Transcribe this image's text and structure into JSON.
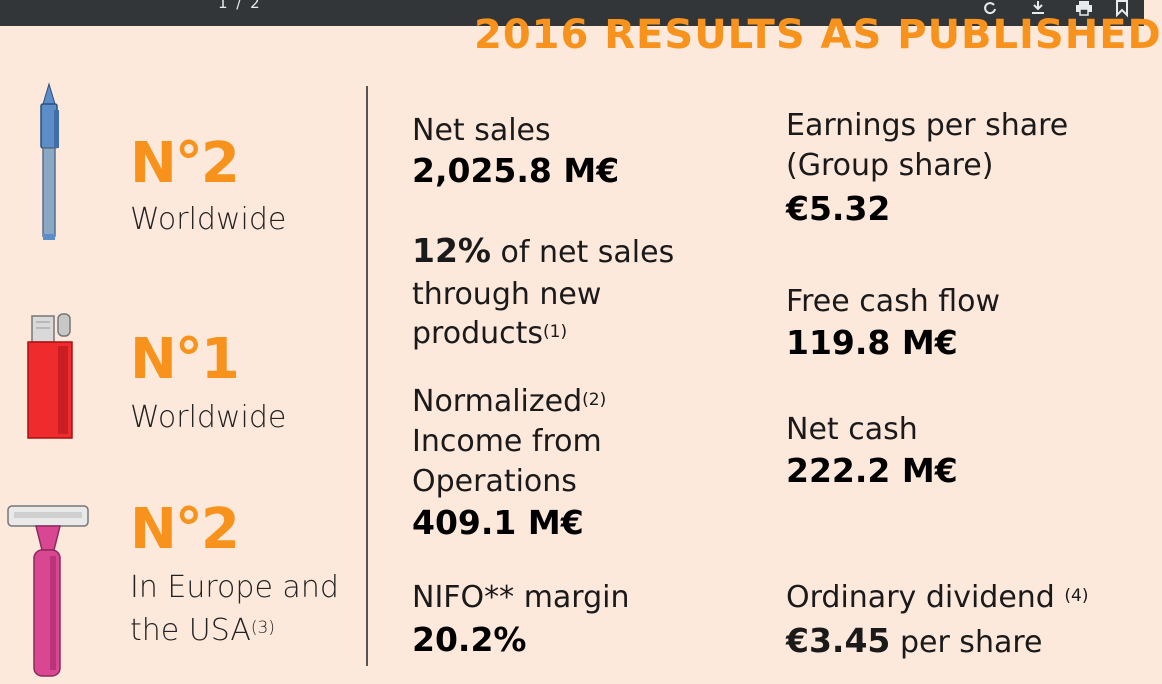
{
  "toolbar": {
    "page_indicator": "1 / 2"
  },
  "slide": {
    "title": "2016 RESULTS AS PUBLISHED",
    "rankings": [
      {
        "rank": "N°2",
        "scope": "Worldwide",
        "icon": "pen-icon"
      },
      {
        "rank": "N°1",
        "scope": "Worldwide",
        "icon": "lighter-icon"
      },
      {
        "rank": "N°2",
        "scope_line1": "In Europe and",
        "scope_line2": "the USA",
        "footnote": "(3)",
        "icon": "razor-icon"
      }
    ],
    "metrics_left": {
      "net_sales": {
        "label": "Net sales",
        "value": "2,025.8 M€"
      },
      "new_products": {
        "value": "12%",
        "label_line1": "of net sales",
        "label_line2": "through new",
        "label_line3": "products",
        "footnote": "(1)"
      },
      "normalized_income": {
        "label_line1": "Normalized",
        "footnote": "(2)",
        "label_line2": "Income from",
        "label_line3": "Operations",
        "value": "409.1 M€"
      },
      "nifo_margin": {
        "label": "NIFO** margin",
        "value": "20.2%"
      }
    },
    "metrics_right": {
      "eps": {
        "label_line1": "Earnings per share",
        "label_line2": "(Group share)",
        "value": "€5.32"
      },
      "free_cash_flow": {
        "label": "Free cash flow",
        "value": "119.8 M€"
      },
      "net_cash": {
        "label": "Net cash",
        "value": "222.2 M€"
      },
      "dividend": {
        "label": "Ordinary dividend",
        "footnote": "(4)",
        "value": "€3.45",
        "suffix": "per share"
      }
    }
  },
  "colors": {
    "accent": "#f7931d",
    "background": "#fde8dc",
    "toolbar": "#323639"
  }
}
